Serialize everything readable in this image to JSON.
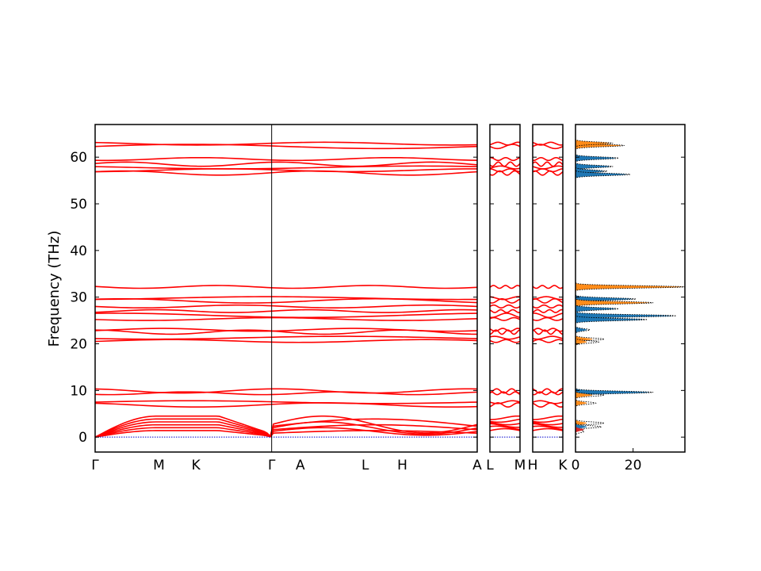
{
  "chart_data": {
    "type": "line",
    "title": "",
    "ylabel": "Frequency (THz)",
    "ylim": [
      -3.2,
      67
    ],
    "yticks": [
      0,
      10,
      20,
      30,
      40,
      50,
      60
    ],
    "colors": {
      "bands": "#ff0000",
      "zero_line": "#0000cc",
      "dos_a": "#ff8c1a",
      "dos_b": "#1f77b4",
      "dos_total": "#000000",
      "dos_c": "#d62728"
    },
    "panels": [
      {
        "name": "band-main",
        "xlim": [
          0,
          1
        ],
        "segment_breaks": [
          0.462
        ],
        "xticks": [
          {
            "x": 0.0,
            "label": "Γ"
          },
          {
            "x": 0.167,
            "label": "M"
          },
          {
            "x": 0.264,
            "label": "K"
          },
          {
            "x": 0.462,
            "label": "Γ"
          },
          {
            "x": 0.537,
            "label": "A"
          },
          {
            "x": 0.707,
            "label": "L"
          },
          {
            "x": 0.804,
            "label": "H"
          },
          {
            "x": 1.0,
            "label": "A"
          }
        ]
      },
      {
        "name": "band-LM",
        "xlim": [
          0,
          1
        ],
        "xticks": [
          {
            "x": 0.0,
            "label": "L"
          },
          {
            "x": 1.0,
            "label": "M"
          }
        ]
      },
      {
        "name": "band-HK",
        "xlim": [
          0,
          1
        ],
        "xticks": [
          {
            "x": 0.0,
            "label": "H"
          },
          {
            "x": 1.0,
            "label": "K"
          }
        ]
      }
    ],
    "flat_bands": [
      62.3,
      62.9,
      59.6,
      58.5,
      57.8,
      57.2,
      56.6,
      32.2,
      29.8,
      29.2,
      28.0,
      27.0,
      26.1,
      25.3,
      23.0,
      22.5,
      21.3,
      20.6,
      9.9,
      9.4,
      7.5,
      6.9
    ],
    "acoustic_max": 4.5,
    "dos": {
      "xlim": [
        0,
        38
      ],
      "xticks": [
        {
          "x": 0,
          "label": "0"
        },
        {
          "x": 20,
          "label": "20"
        }
      ],
      "peaks": [
        {
          "f": 62.5,
          "a": 16,
          "b": 0,
          "t": 17
        },
        {
          "f": 63.0,
          "a": 12,
          "b": 0,
          "t": 13
        },
        {
          "f": 59.8,
          "a": 0,
          "b": 14,
          "t": 15
        },
        {
          "f": 58.0,
          "a": 0,
          "b": 12,
          "t": 13
        },
        {
          "f": 57.0,
          "a": 0,
          "b": 10,
          "t": 11
        },
        {
          "f": 56.3,
          "a": 0,
          "b": 18,
          "t": 19
        },
        {
          "f": 32.2,
          "a": 38,
          "b": 0,
          "t": 38
        },
        {
          "f": 29.6,
          "a": 0,
          "b": 20,
          "t": 21
        },
        {
          "f": 28.8,
          "a": 26,
          "b": 0,
          "t": 27
        },
        {
          "f": 27.5,
          "a": 0,
          "b": 14,
          "t": 15
        },
        {
          "f": 26.0,
          "a": 0,
          "b": 34,
          "t": 35
        },
        {
          "f": 25.2,
          "a": 0,
          "b": 24,
          "t": 25
        },
        {
          "f": 23.0,
          "a": 0,
          "b": 4,
          "t": 5
        },
        {
          "f": 21.0,
          "a": 6,
          "b": 0,
          "t": 10
        },
        {
          "f": 20.4,
          "a": 4,
          "b": 0,
          "t": 8
        },
        {
          "f": 9.6,
          "a": 0,
          "b": 26,
          "t": 27
        },
        {
          "f": 9.0,
          "a": 6,
          "b": 0,
          "t": 10
        },
        {
          "f": 7.3,
          "a": 4,
          "b": 0,
          "t": 7
        },
        {
          "f": 3.0,
          "a": 4,
          "b": 0,
          "t": 10
        },
        {
          "f": 2.2,
          "a": 0,
          "b": 4,
          "t": 9
        },
        {
          "f": 1.2,
          "a": 0,
          "b": 0,
          "t": 3
        }
      ]
    }
  }
}
